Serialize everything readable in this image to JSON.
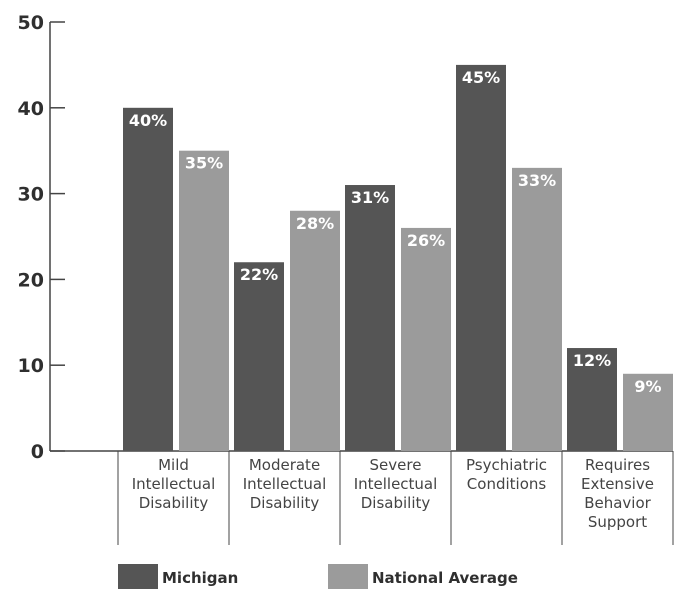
{
  "chart_data": {
    "type": "bar",
    "categories": [
      [
        "Mild",
        "Intellectual",
        "Disability"
      ],
      [
        "Moderate",
        "Intellectual",
        "Disability"
      ],
      [
        "Severe",
        "Intellectual",
        "Disability"
      ],
      [
        "Psychiatric",
        "Conditions"
      ],
      [
        "Requires",
        "Extensive",
        "Behavior",
        "Support"
      ]
    ],
    "series": [
      {
        "name": "Michigan",
        "color": "#555555",
        "values": [
          40,
          22,
          31,
          45,
          12
        ],
        "labels": [
          "40%",
          "22%",
          "31%",
          "45%",
          "12%"
        ]
      },
      {
        "name": "National Average",
        "color": "#9b9b9b",
        "values": [
          35,
          28,
          26,
          33,
          9
        ],
        "labels": [
          "35%",
          "28%",
          "26%",
          "33%",
          "9%"
        ]
      }
    ],
    "ylim": [
      0,
      50
    ],
    "yticks": [
      {
        "value": 0,
        "label": "0"
      },
      {
        "value": 10,
        "label": "10"
      },
      {
        "value": 20,
        "label": "20"
      },
      {
        "value": 30,
        "label": "30"
      },
      {
        "value": 40,
        "label": "40"
      },
      {
        "value": 50,
        "label": "50"
      }
    ],
    "title": "",
    "xlabel": "",
    "ylabel": "",
    "grid": false,
    "legend_position": "bottom-left"
  }
}
